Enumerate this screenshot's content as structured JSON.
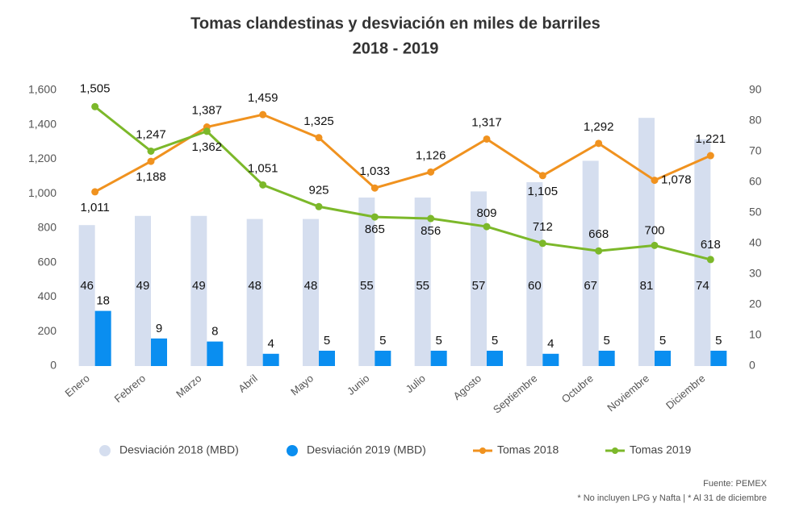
{
  "chart_data": {
    "type": "bar-line",
    "title": "Tomas clandestinas y desviación en miles de barriles",
    "subtitle": "2018 - 2019",
    "categories": [
      "Enero",
      "Febrero",
      "Marzo",
      "Abril",
      "Mayo",
      "Junio",
      "Julio",
      "Agosto",
      "Septiembre",
      "Octubre",
      "Noviembre",
      "Diciembre"
    ],
    "series": [
      {
        "name": "Desviación 2018 (MBD)",
        "type": "bar",
        "axis": "y2",
        "color": "#d5deef",
        "values": [
          46,
          49,
          49,
          48,
          48,
          55,
          55,
          57,
          60,
          67,
          81,
          74
        ]
      },
      {
        "name": "Desviación 2019 (MBD)",
        "type": "bar",
        "axis": "y2",
        "color": "#0a8ef0",
        "values": [
          18,
          9,
          8,
          4,
          5,
          5,
          5,
          5,
          4,
          5,
          5,
          5
        ]
      },
      {
        "name": "Tomas 2018",
        "type": "line",
        "color": "#f0921f",
        "values": [
          1011,
          1188,
          1387,
          1459,
          1325,
          1033,
          1126,
          1317,
          1105,
          1292,
          1078,
          1221
        ],
        "value_labels": [
          "1,011",
          "1,188",
          "1,387",
          "1,459",
          "1,325",
          "1,033",
          "1,126",
          "1,317",
          "1,105",
          "1,292",
          "1,078",
          "1,221"
        ]
      },
      {
        "name": "Tomas 2019",
        "type": "line",
        "color": "#7cb82a",
        "values": [
          1505,
          1247,
          1362,
          1051,
          925,
          865,
          856,
          809,
          712,
          668,
          700,
          618
        ],
        "value_labels": [
          "1,505",
          "1,247",
          "1,362",
          "1,051",
          "925",
          "865",
          "856",
          "809",
          "712",
          "668",
          "700",
          "618"
        ]
      }
    ],
    "ylim": [
      0,
      1600
    ],
    "yticks": [
      0,
      200,
      400,
      600,
      800,
      {
        "value": 1000,
        "label": "1,000"
      },
      {
        "value": 1200,
        "label": "1,200"
      },
      {
        "value": 1400,
        "label": "1,400"
      },
      {
        "value": 1600,
        "label": "1,600"
      }
    ],
    "y2lim": [
      0,
      90
    ],
    "y2ticks": [
      0,
      10,
      20,
      30,
      40,
      50,
      60,
      70,
      80,
      90
    ],
    "source": "Fuente: PEMEX",
    "note": "* No incluyen LPG y Nafta | * Al 31 de diciembre"
  }
}
